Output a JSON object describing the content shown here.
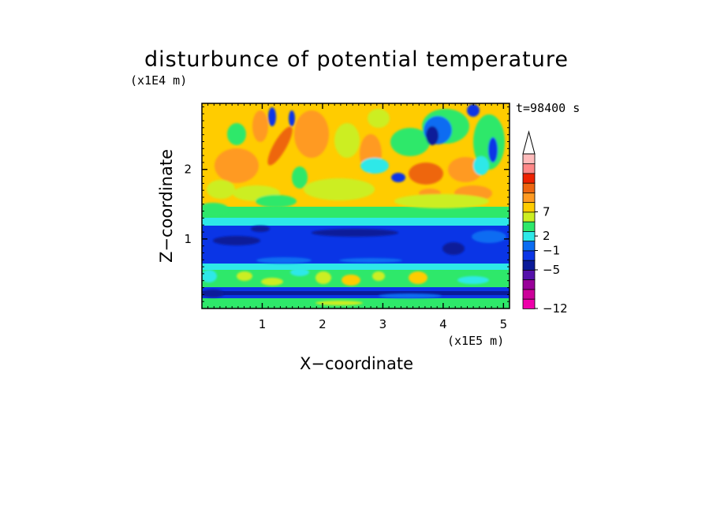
{
  "chart_data": {
    "type": "heatmap",
    "title": "disturbunce of potential temperature",
    "xlabel": "X−coordinate",
    "ylabel": "Z−coordinate",
    "x_unit": "(x1E5 m)",
    "y_unit": "(x1E4 m)",
    "time_label": "t=98400 s",
    "xlim": [
      0,
      5.1
    ],
    "ylim": [
      0,
      2.95
    ],
    "x_ticks": [
      "1",
      "2",
      "3",
      "4",
      "5"
    ],
    "x_tick_values": [
      1,
      2,
      3,
      4,
      5
    ],
    "y_ticks": [
      "1",
      "2"
    ],
    "y_tick_values": [
      1,
      2
    ],
    "colorbar": {
      "labels": [
        "7",
        "2",
        "−1",
        "−5",
        "−12"
      ],
      "label_levels": [
        7,
        2,
        -1,
        -5,
        -12
      ],
      "colors_bottom_to_top": [
        "#ee00aa",
        "#cc0099",
        "#990099",
        "#5511aa",
        "#0a1a99",
        "#0a35e6",
        "#0a6cf2",
        "#2ee8e8",
        "#2ee86a",
        "#ccee22",
        "#ffcc00",
        "#ff9a22",
        "#ee6611",
        "#ee2200",
        "#ff8888",
        "#ffbbbb"
      ],
      "extend": "max"
    },
    "layers": [
      {
        "z_range": [
          0.0,
          0.1
        ],
        "dominant": "green / cyan"
      },
      {
        "z_range": [
          0.1,
          0.3
        ],
        "dominant": "dark blue band"
      },
      {
        "z_range": [
          0.3,
          0.75
        ],
        "dominant": "green with yellow and cyan patches"
      },
      {
        "z_range": [
          0.75,
          1.15
        ],
        "dominant": "blue band with dark blue spots"
      },
      {
        "z_range": [
          1.15,
          1.4
        ],
        "dominant": "cyan / green"
      },
      {
        "z_range": [
          1.4,
          2.95
        ],
        "dominant": "yellow / orange with green, cyan and dark blue wave patterns"
      }
    ]
  }
}
